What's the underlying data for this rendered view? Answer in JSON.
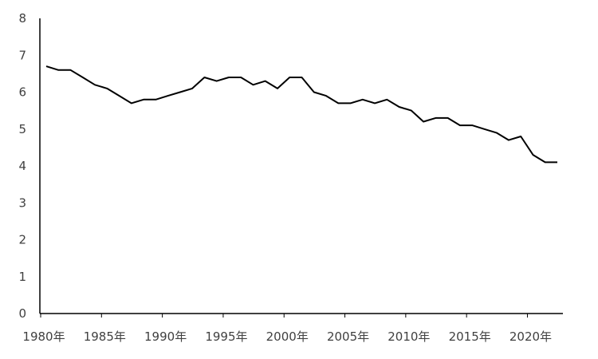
{
  "chart_data": {
    "type": "line",
    "title": "",
    "xlabel": "",
    "ylabel": "",
    "ylim": [
      0,
      8
    ],
    "xlim": [
      1980,
      2022
    ],
    "grid": false,
    "legend": "none",
    "line_color": "#000000",
    "axis_color": "#000000",
    "yticks": [
      0,
      1,
      2,
      3,
      4,
      5,
      6,
      7,
      8
    ],
    "xtick_values": [
      1980,
      1985,
      1990,
      1995,
      2000,
      2005,
      2010,
      2015,
      2020
    ],
    "xtick_labels": [
      "1980年",
      "1985年",
      "1990年",
      "1995年",
      "2000年",
      "2005年",
      "2010年",
      "2015年",
      "2020年"
    ],
    "x": [
      1980,
      1981,
      1982,
      1983,
      1984,
      1985,
      1986,
      1987,
      1988,
      1989,
      1990,
      1991,
      1992,
      1993,
      1994,
      1995,
      1996,
      1997,
      1998,
      1999,
      2000,
      2001,
      2002,
      2003,
      2004,
      2005,
      2006,
      2007,
      2008,
      2009,
      2010,
      2011,
      2012,
      2013,
      2014,
      2015,
      2016,
      2017,
      2018,
      2019,
      2020,
      2021,
      2022
    ],
    "series": [
      {
        "values": [
          6.7,
          6.6,
          6.6,
          6.4,
          6.2,
          6.1,
          5.9,
          5.7,
          5.8,
          5.8,
          5.9,
          6.0,
          6.1,
          6.4,
          6.3,
          6.4,
          6.4,
          6.2,
          6.3,
          6.1,
          6.4,
          6.4,
          6.0,
          5.9,
          5.7,
          5.7,
          5.8,
          5.7,
          5.8,
          5.6,
          5.5,
          5.2,
          5.3,
          5.3,
          5.1,
          5.1,
          5.0,
          4.9,
          4.7,
          4.8,
          4.3,
          4.1,
          4.1
        ]
      }
    ]
  }
}
